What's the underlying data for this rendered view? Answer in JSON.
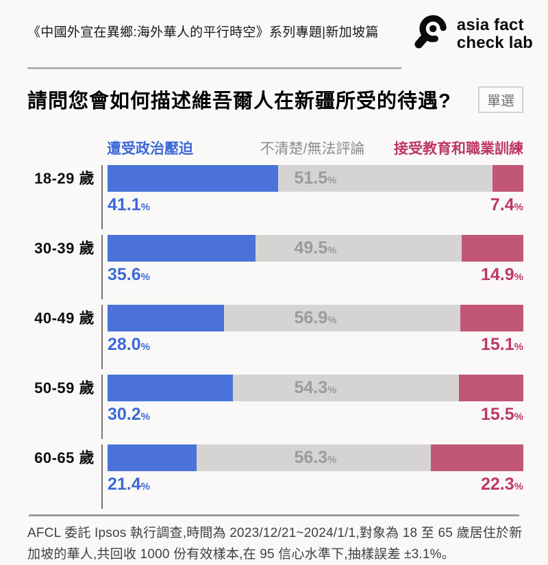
{
  "header": {
    "series_title": "《中國外宣在異鄉:海外華人的平行時空》系列專題|新加坡篇",
    "logo": {
      "line1": "asia fact",
      "line2": "check lab"
    }
  },
  "question": {
    "title": "請問您會如何描述維吾爾人在新疆所受的待遇?",
    "badge": "單選"
  },
  "chart_data": {
    "type": "bar",
    "stacked": true,
    "orientation": "horizontal",
    "unit": "%",
    "xlim": [
      0,
      100
    ],
    "legend_position": "top",
    "grid": false,
    "categories": [
      "18-29 歲",
      "30-39 歲",
      "40-49 歲",
      "50-59 歲",
      "60-65 歲"
    ],
    "series": [
      {
        "name": "遭受政治壓迫",
        "bar_color": "#4A72D8",
        "label_color": "#3D68D8",
        "values": [
          41.1,
          35.6,
          28.0,
          30.2,
          21.4
        ]
      },
      {
        "name": "不清楚/無法評論",
        "bar_color": "#D5D4D2",
        "label_color": "#9C9B99",
        "values": [
          51.5,
          49.5,
          56.9,
          54.3,
          56.3
        ]
      },
      {
        "name": "接受教育和職業訓練",
        "bar_color": "#C25677",
        "label_color": "#BE3766",
        "values": [
          7.4,
          14.9,
          15.1,
          15.5,
          22.3
        ]
      }
    ],
    "legend_mid_text_color": "#8E8D8B"
  },
  "footer": {
    "source_note": "AFCL 委託 Ipsos 執行調查,時間為 2023/12/21~2024/1/1,對象為 18 至 65 歲居住於新加坡的華人,共回收 1000 份有效樣本,在 95 信心水準下,抽樣誤差 ±3.1%。"
  }
}
